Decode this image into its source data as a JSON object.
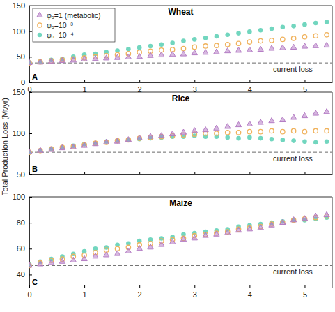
{
  "chart_data": [
    {
      "type": "scatter",
      "title": "Wheat",
      "panel_label": "A",
      "legend": "upper left",
      "hline": {
        "value": 38,
        "label": "current loss"
      },
      "xlim": [
        0,
        5.5
      ],
      "xticks": [
        0,
        1,
        2,
        3,
        4,
        5
      ],
      "ylim": [
        0,
        150
      ],
      "yticks": [
        0,
        50,
        100,
        150
      ],
      "series": [
        {
          "name": "φₒ=1 (metabolic)",
          "color": "#b47cc4",
          "marker": "triangle",
          "x": [
            0,
            0.2,
            0.4,
            0.6,
            0.8,
            1,
            1.2,
            1.4,
            1.6,
            1.8,
            2,
            2.2,
            2.4,
            2.6,
            2.8,
            3,
            3.2,
            3.4,
            3.6,
            3.8,
            4,
            4.2,
            4.4,
            4.6,
            4.8,
            5,
            5.2,
            5.4
          ],
          "values": [
            38,
            39,
            41,
            42,
            43,
            45,
            46,
            47,
            48,
            49,
            50,
            52,
            53,
            54,
            55,
            57,
            58,
            59,
            61,
            62,
            63,
            64,
            66,
            67,
            68,
            70,
            71,
            72
          ]
        },
        {
          "name": "φₒ=10⁻³",
          "color": "#f0b25c",
          "marker": "circle-open",
          "x": [
            0,
            0.2,
            0.4,
            0.6,
            0.8,
            1,
            1.2,
            1.4,
            1.6,
            1.8,
            2,
            2.2,
            2.4,
            2.6,
            2.8,
            3,
            3.2,
            3.4,
            3.6,
            3.8,
            4,
            4.2,
            4.4,
            4.6,
            4.8,
            5,
            5.2,
            5.4
          ],
          "values": [
            38,
            40,
            42,
            44,
            46,
            48,
            50,
            52,
            54,
            56,
            59,
            61,
            63,
            64,
            66,
            69,
            71,
            72,
            74,
            76,
            79,
            81,
            82,
            84,
            86,
            89,
            91,
            93
          ]
        },
        {
          "name": "φₒ=10⁻⁴",
          "color": "#72d6bf",
          "marker": "circle",
          "x": [
            0,
            0.2,
            0.4,
            0.6,
            0.8,
            1,
            1.2,
            1.4,
            1.6,
            1.8,
            2,
            2.2,
            2.4,
            2.6,
            2.8,
            3,
            3.2,
            3.4,
            3.6,
            3.8,
            4,
            4.2,
            4.4,
            4.6,
            4.8,
            5,
            5.2,
            5.4
          ],
          "values": [
            39,
            41,
            44,
            46,
            50,
            54,
            56,
            59,
            62,
            65,
            68,
            71,
            74,
            77,
            81,
            84,
            87,
            90,
            93,
            96,
            99,
            102,
            105,
            108,
            110,
            113,
            116,
            118
          ]
        }
      ]
    },
    {
      "type": "scatter",
      "title": "Rice",
      "panel_label": "B",
      "tick_labels": "y",
      "y_label": "Total Production Loss (Mt/yr)",
      "hline": {
        "value": 77,
        "label": "current loss"
      },
      "xlim": [
        0,
        5.5
      ],
      "xticks": [
        0,
        1,
        2,
        3,
        4,
        5
      ],
      "ylim": [
        50,
        150
      ],
      "yticks": [
        50,
        100,
        150
      ],
      "series": [
        {
          "color": "#b47cc4",
          "marker": "triangle",
          "x": [
            0,
            0.2,
            0.4,
            0.6,
            0.8,
            1,
            1.2,
            1.4,
            1.6,
            1.8,
            2,
            2.2,
            2.4,
            2.6,
            2.8,
            3,
            3.2,
            3.4,
            3.6,
            3.8,
            4,
            4.2,
            4.4,
            4.6,
            4.8,
            5,
            5.2,
            5.4
          ],
          "values": [
            77,
            79,
            80,
            82,
            83,
            85,
            87,
            89,
            90,
            92,
            94,
            96,
            97,
            99,
            101,
            103,
            104,
            106,
            108,
            110,
            111,
            113,
            115,
            116,
            119,
            121,
            124,
            126
          ]
        },
        {
          "color": "#f0b25c",
          "marker": "circle-open",
          "x": [
            0,
            0.2,
            0.4,
            0.6,
            0.8,
            1,
            1.2,
            1.4,
            1.6,
            1.8,
            2,
            2.2,
            2.4,
            2.6,
            2.8,
            3,
            3.2,
            3.4,
            3.6,
            3.8,
            4,
            4.2,
            4.4,
            4.6,
            4.8,
            5,
            5.2,
            5.4
          ],
          "values": [
            77,
            79,
            81,
            83,
            84,
            86,
            88,
            89,
            91,
            92,
            94,
            95,
            96,
            97,
            98,
            99,
            100,
            100,
            101,
            101,
            102,
            102,
            103,
            102,
            103,
            102,
            103,
            103
          ]
        },
        {
          "color": "#72d6bf",
          "marker": "circle",
          "x": [
            0,
            0.2,
            0.4,
            0.6,
            0.8,
            1,
            1.2,
            1.4,
            1.6,
            1.8,
            2,
            2.2,
            2.4,
            2.6,
            2.8,
            3,
            3.2,
            3.4,
            3.6,
            3.8,
            4,
            4.2,
            4.4,
            4.6,
            4.8,
            5,
            5.2,
            5.4
          ],
          "values": [
            77,
            79,
            81,
            83,
            85,
            87,
            88,
            90,
            91,
            92,
            93,
            94,
            95,
            96,
            96,
            97,
            96,
            96,
            95,
            94,
            95,
            94,
            93,
            92,
            91,
            90,
            89,
            90
          ]
        }
      ]
    },
    {
      "type": "scatter",
      "title": "Maize",
      "panel_label": "C",
      "hline": {
        "value": 47,
        "label": "current loss"
      },
      "xlim": [
        0,
        5.5
      ],
      "xticks": [
        0,
        1,
        2,
        3,
        4,
        5
      ],
      "ylim": [
        30,
        100
      ],
      "yticks": [
        40,
        60,
        80,
        100
      ],
      "series": [
        {
          "color": "#b47cc4",
          "marker": "triangle",
          "x": [
            0,
            0.2,
            0.4,
            0.6,
            0.8,
            1,
            1.2,
            1.4,
            1.6,
            1.8,
            2,
            2.2,
            2.4,
            2.6,
            2.8,
            3,
            3.2,
            3.4,
            3.6,
            3.8,
            4,
            4.2,
            4.4,
            4.6,
            4.8,
            5,
            5.2,
            5.4
          ],
          "values": [
            47,
            48,
            49,
            50,
            51,
            52,
            54,
            55,
            56,
            58,
            60,
            61,
            63,
            65,
            67,
            68,
            70,
            71,
            72,
            74,
            75,
            76,
            78,
            80,
            82,
            83,
            85,
            86
          ]
        },
        {
          "color": "#f0b25c",
          "marker": "circle-open",
          "x": [
            0,
            0.2,
            0.4,
            0.6,
            0.8,
            1,
            1.2,
            1.4,
            1.6,
            1.8,
            2,
            2.2,
            2.4,
            2.6,
            2.8,
            3,
            3.2,
            3.4,
            3.6,
            3.8,
            4,
            4.2,
            4.4,
            4.6,
            4.8,
            5,
            5.2,
            5.4
          ],
          "values": [
            47,
            49,
            51,
            52,
            54,
            55,
            57,
            59,
            60,
            61,
            63,
            64,
            66,
            67,
            68,
            70,
            71,
            72,
            73,
            75,
            76,
            77,
            79,
            80,
            82,
            83,
            84,
            85
          ]
        },
        {
          "color": "#72d6bf",
          "marker": "circle",
          "x": [
            0,
            0.2,
            0.4,
            0.6,
            0.8,
            1,
            1.2,
            1.4,
            1.6,
            1.8,
            2,
            2.2,
            2.4,
            2.6,
            2.8,
            3,
            3.2,
            3.4,
            3.6,
            3.8,
            4,
            4.2,
            4.4,
            4.6,
            4.8,
            5,
            5.2,
            5.4
          ],
          "values": [
            48,
            50,
            52,
            54,
            56,
            58,
            60,
            61,
            63,
            64,
            66,
            67,
            68,
            69,
            71,
            72,
            73,
            74,
            75,
            77,
            78,
            79,
            80,
            81,
            82,
            82,
            83,
            84
          ]
        }
      ]
    }
  ]
}
